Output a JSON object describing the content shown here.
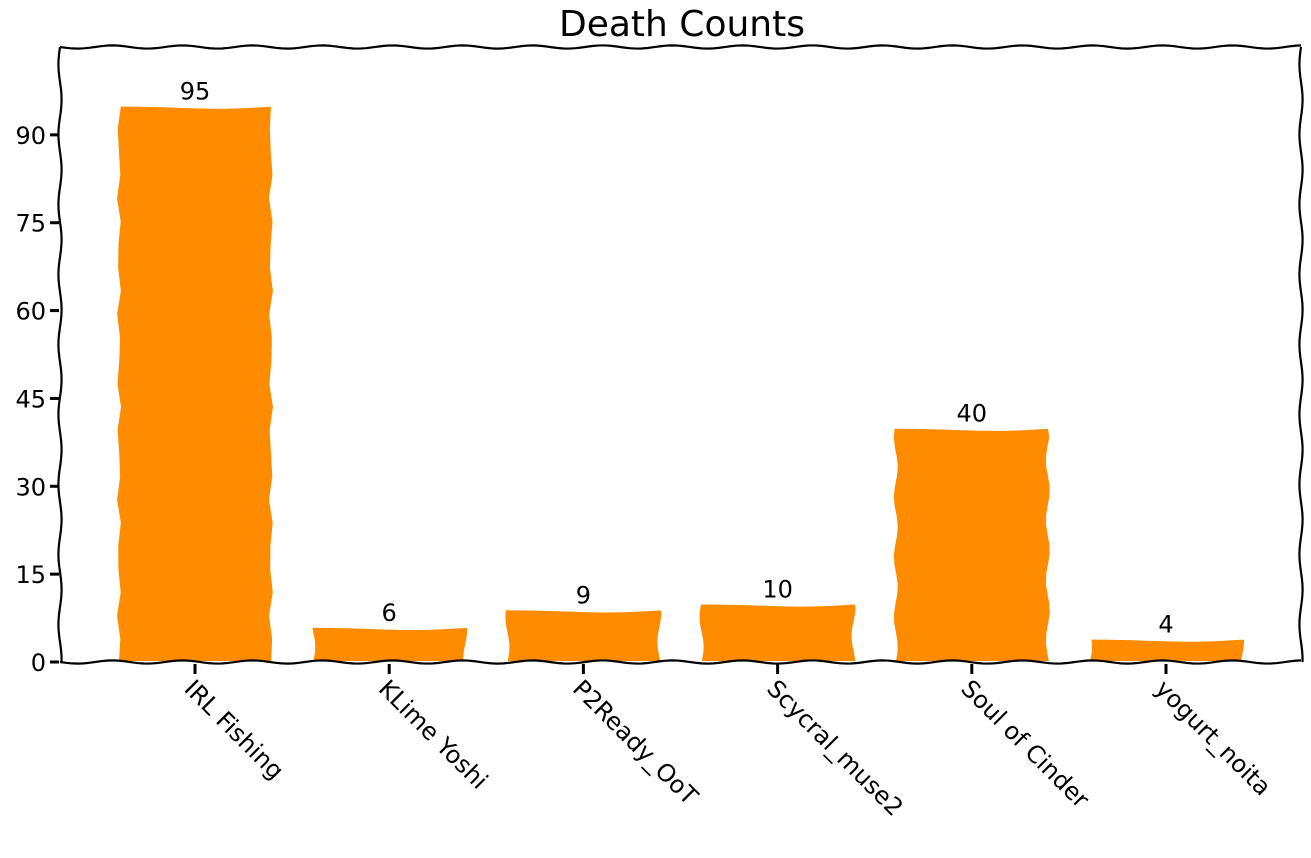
{
  "chart_data": {
    "type": "bar",
    "title": "Death Counts",
    "xlabel": "",
    "ylabel": "",
    "categories": [
      "IRL Fishing",
      "KLime Yoshi",
      "P2Ready_OoT",
      "Scycral_muse2",
      "Soul of Cinder",
      "yogurt_noita"
    ],
    "values": [
      95,
      6,
      9,
      10,
      40,
      4
    ],
    "data_labels": [
      "95",
      "6",
      "9",
      "10",
      "40",
      "4"
    ],
    "ylim": [
      0,
      105
    ],
    "yticks": [
      0,
      15,
      30,
      45,
      60,
      75,
      90
    ],
    "ytick_labels": [
      "0",
      "15",
      "30",
      "45",
      "60",
      "75",
      "90"
    ],
    "bar_color": "#ff8c00",
    "grid": false,
    "legend": "none",
    "style": "hand-drawn"
  }
}
